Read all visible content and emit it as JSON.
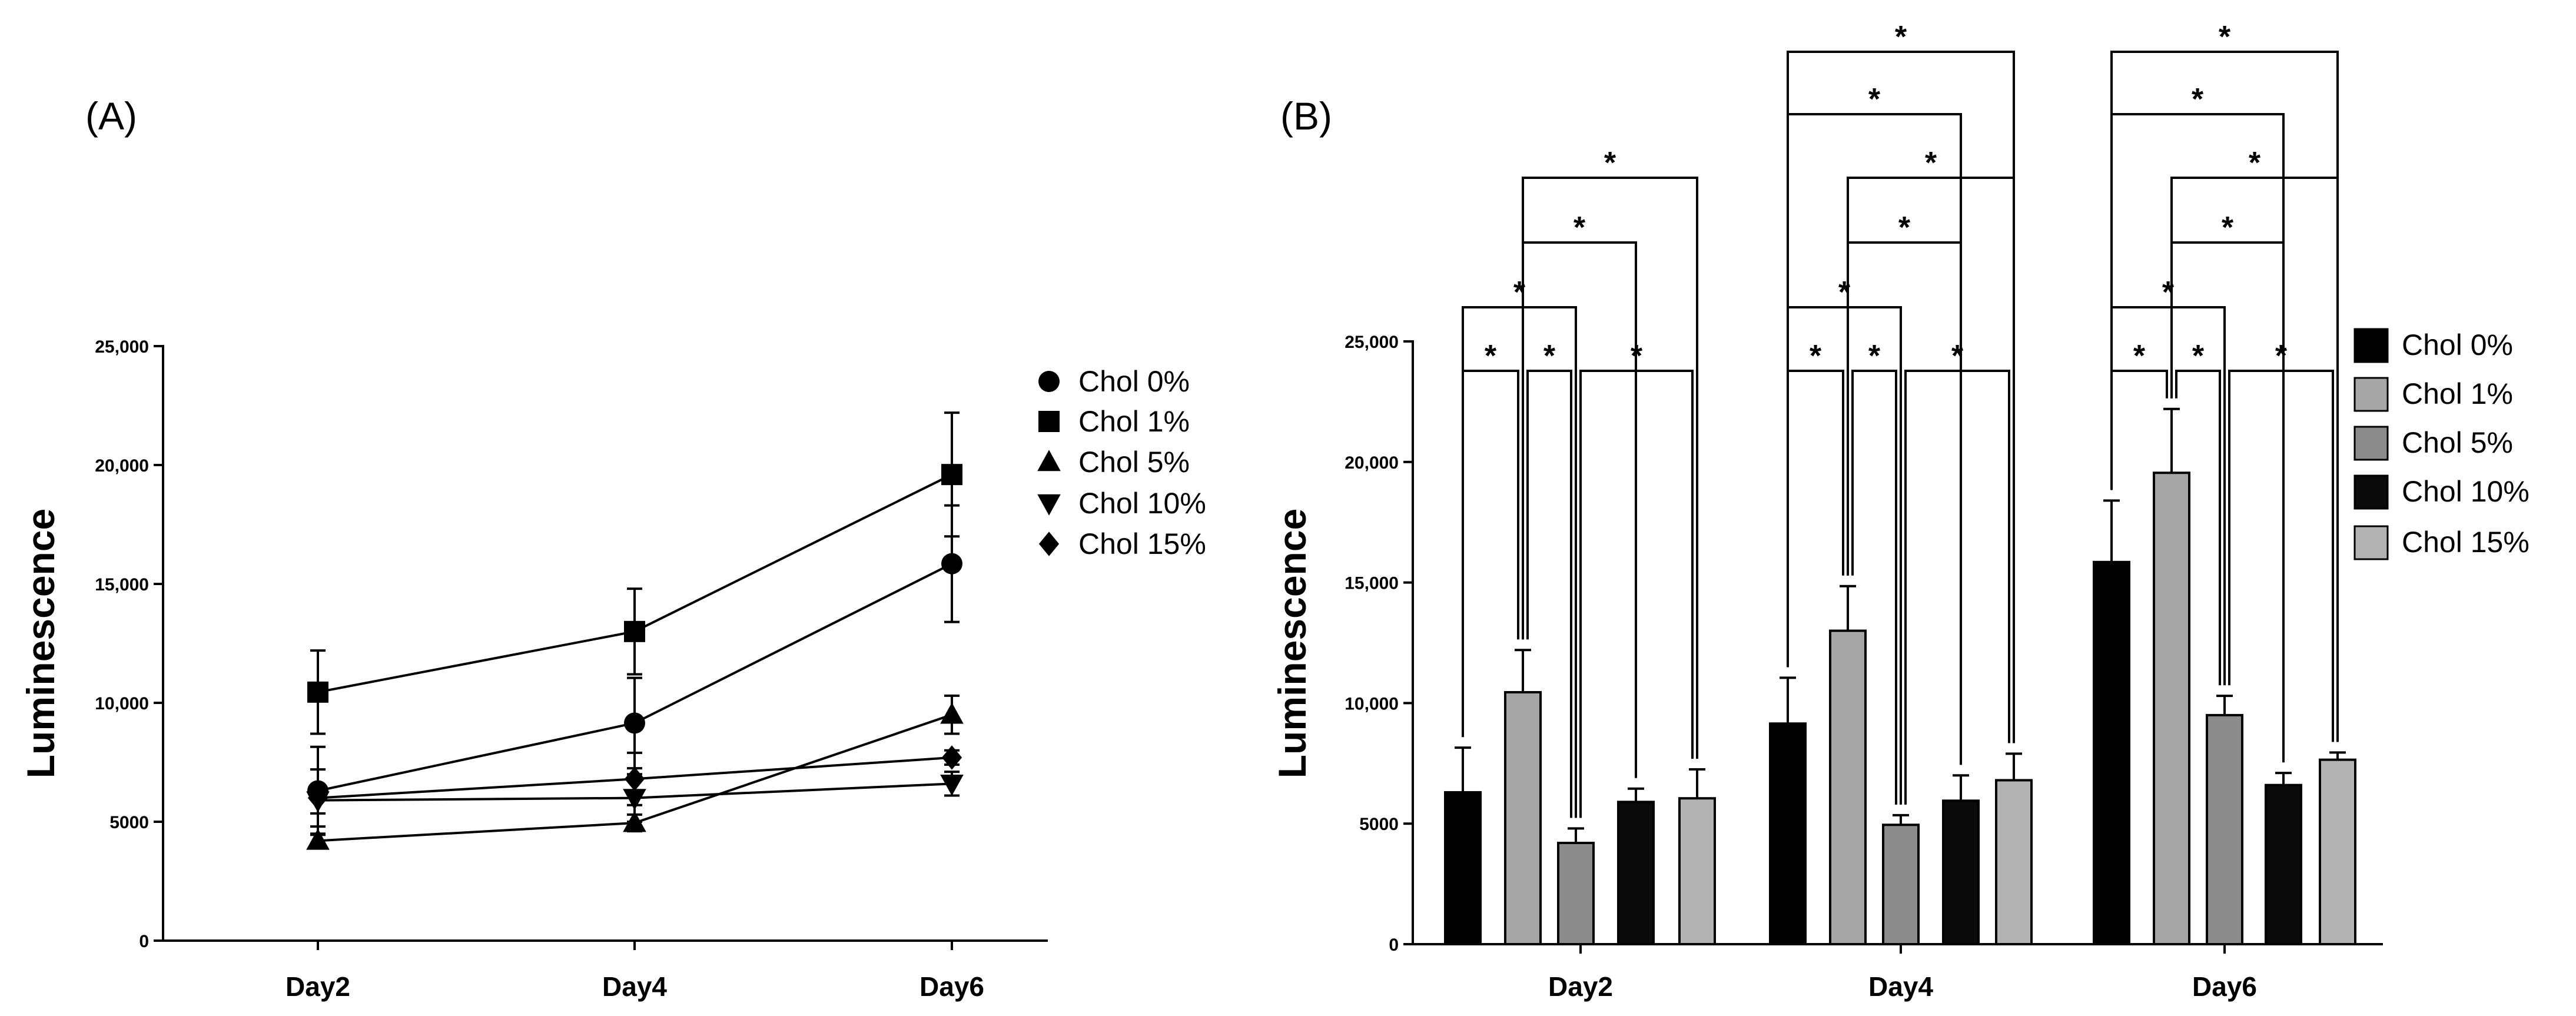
{
  "panels": {
    "A": {
      "label": "(A)"
    },
    "B": {
      "label": "(B)"
    }
  },
  "colors": {
    "Chol 0%": "#000000",
    "Chol 1%": "#a6a6a6",
    "Chol 5%": "#8c8c8c",
    "Chol 10%": "#0a0a0a",
    "Chol 15%": "#b2b2b2"
  },
  "markers": {
    "Chol 0%": "circle",
    "Chol 1%": "square",
    "Chol 5%": "triangle-up",
    "Chol 10%": "triangle-down",
    "Chol 15%": "diamond"
  },
  "significance": {
    "symbol": "*",
    "comparisons": [
      [
        "Chol 0%",
        "Chol 1%"
      ],
      [
        "Chol 1%",
        "Chol 5%"
      ],
      [
        "Chol 5%",
        "Chol 15%"
      ],
      [
        "Chol 0%",
        "Chol 5%"
      ],
      [
        "Chol 1%",
        "Chol 10%"
      ],
      [
        "Chol 1%",
        "Chol 15%"
      ],
      [
        "Chol 0%",
        "Chol 10%"
      ],
      [
        "Chol 0%",
        "Chol 15%"
      ]
    ]
  },
  "chart_data": [
    {
      "type": "line",
      "panel": "A",
      "categories": [
        "Day2",
        "Day4",
        "Day6"
      ],
      "series": [
        {
          "name": "Chol 0%",
          "values": [
            6300,
            9150,
            15850
          ],
          "errors": [
            1850,
            1900,
            2450
          ]
        },
        {
          "name": "Chol 1%",
          "values": [
            10450,
            13000,
            19600
          ],
          "errors": [
            1750,
            1800,
            2600
          ]
        },
        {
          "name": "Chol 5%",
          "values": [
            4200,
            4950,
            9500
          ],
          "errors": [
            300,
            350,
            800
          ]
        },
        {
          "name": "Chol 10%",
          "values": [
            5900,
            6000,
            6600
          ],
          "errors": [
            550,
            1000,
            500
          ]
        },
        {
          "name": "Chol 15%",
          "values": [
            6000,
            6800,
            7700
          ],
          "errors": [
            1200,
            1100,
            300
          ]
        }
      ],
      "xlabel": "",
      "ylabel": "Luminescence",
      "ylim": [
        0,
        25000
      ],
      "yticks": [
        0,
        5000,
        10000,
        15000,
        20000,
        25000
      ],
      "ytick_labels": [
        "0",
        "5000",
        "10,000",
        "15,000",
        "20,000",
        "25,000"
      ],
      "legend": [
        "Chol 0%",
        "Chol 1%",
        "Chol 5%",
        "Chol 10%",
        "Chol 15%"
      ],
      "legend_position": "top-right",
      "grid": false
    },
    {
      "type": "bar",
      "panel": "B",
      "categories": [
        "Day2",
        "Day4",
        "Day6"
      ],
      "series": [
        {
          "name": "Chol 0%",
          "values": [
            6300,
            9150,
            15850
          ],
          "errors": [
            1850,
            1900,
            2550
          ]
        },
        {
          "name": "Chol 1%",
          "values": [
            10450,
            13000,
            19550
          ],
          "errors": [
            1750,
            1850,
            2650
          ]
        },
        {
          "name": "Chol 5%",
          "values": [
            4200,
            4950,
            9500
          ],
          "errors": [
            600,
            400,
            800
          ]
        },
        {
          "name": "Chol 10%",
          "values": [
            5900,
            5950,
            6600
          ],
          "errors": [
            550,
            1050,
            500
          ]
        },
        {
          "name": "Chol 15%",
          "values": [
            6050,
            6800,
            7650
          ],
          "errors": [
            1200,
            1100,
            300
          ]
        }
      ],
      "xlabel": "",
      "ylabel": "Luminescence",
      "ylim": [
        0,
        25000
      ],
      "yticks": [
        0,
        5000,
        10000,
        15000,
        20000,
        25000
      ],
      "ytick_labels": [
        "0",
        "5000",
        "10,000",
        "15,000",
        "20,000",
        "25,000"
      ],
      "legend": [
        "Chol 0%",
        "Chol 1%",
        "Chol 5%",
        "Chol 10%",
        "Chol 15%"
      ],
      "legend_position": "right",
      "grid": false
    }
  ]
}
